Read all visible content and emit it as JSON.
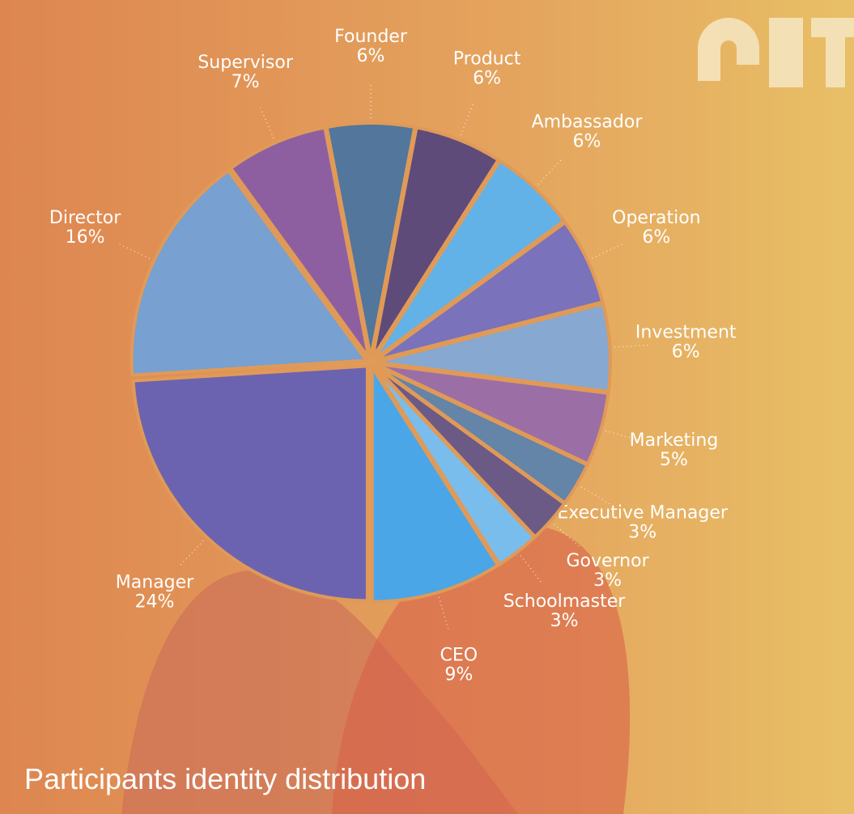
{
  "chart_data": {
    "type": "pie",
    "title": "Participants identity distribution",
    "categories": [
      "Founder",
      "Product",
      "Ambassador",
      "Operation",
      "Investment",
      "Marketing",
      "Executive Manager",
      "Governor",
      "Schoolmaster",
      "CEO",
      "Manager",
      "Director",
      "Supervisor"
    ],
    "values": [
      6,
      6,
      6,
      6,
      6,
      5,
      3,
      3,
      3,
      9,
      24,
      16,
      7
    ],
    "value_labels": [
      "6%",
      "6%",
      "6%",
      "6%",
      "6%",
      "5%",
      "3%",
      "3%",
      "3%",
      "9%",
      "24%",
      "16%",
      "7%"
    ],
    "colors": [
      "#52769c",
      "#5e4b7a",
      "#62b2e8",
      "#7a72ba",
      "#87a8d0",
      "#9b6fa6",
      "#6484a8",
      "#6b5a86",
      "#79bdec",
      "#4aa6e6",
      "#6c63b0",
      "#78a0d0",
      "#8e5fa0"
    ]
  }
}
